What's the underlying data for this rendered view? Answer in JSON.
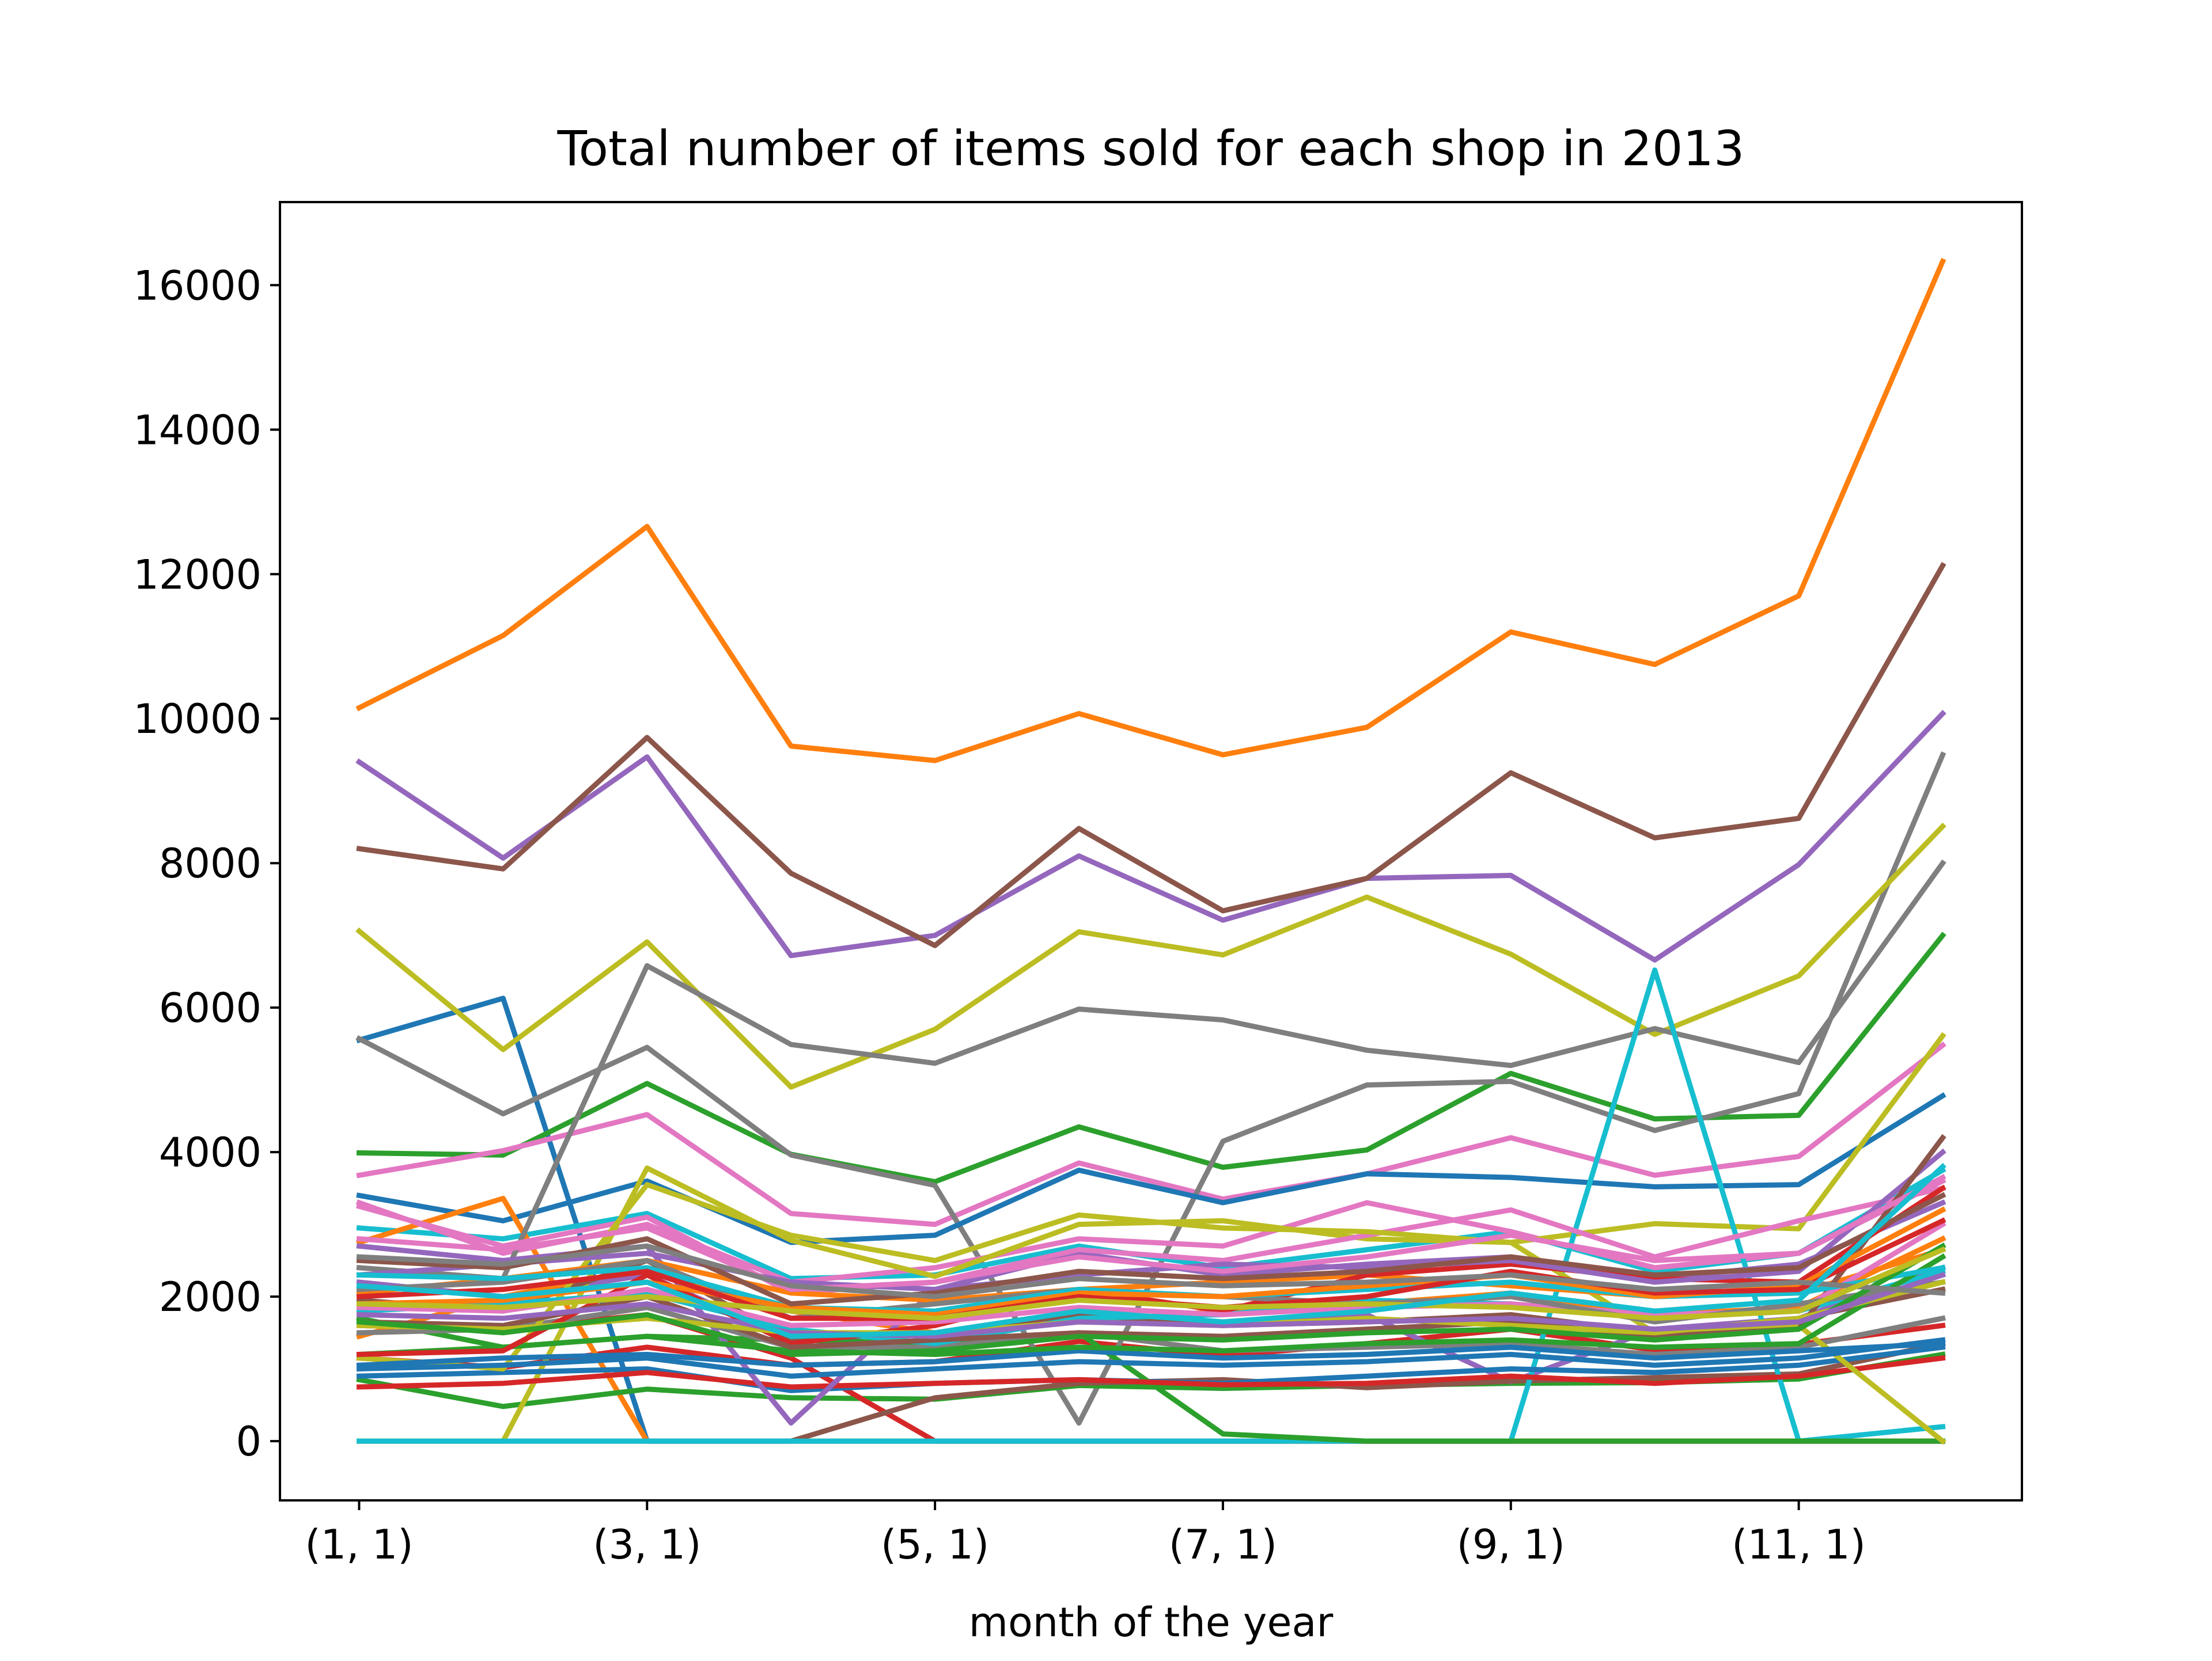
{
  "chart_data": {
    "type": "line",
    "title": "Total number of items sold for each shop in 2013",
    "xlabel": "month of the year",
    "ylabel": "",
    "x": [
      1,
      2,
      3,
      4,
      5,
      6,
      7,
      8,
      9,
      10,
      11,
      12
    ],
    "xticks": [
      {
        "x": 1,
        "label": "(1, 1)"
      },
      {
        "x": 3,
        "label": "(3, 1)"
      },
      {
        "x": 5,
        "label": "(5, 1)"
      },
      {
        "x": 7,
        "label": "(7, 1)"
      },
      {
        "x": 9,
        "label": "(9, 1)"
      },
      {
        "x": 11,
        "label": "(11, 1)"
      }
    ],
    "yticks": [
      0,
      2000,
      4000,
      6000,
      8000,
      10000,
      12000,
      14000,
      16000
    ],
    "xlim": [
      0.45,
      12.55
    ],
    "ylim": [
      -820,
      17150
    ],
    "grid": false,
    "legend": "none",
    "series": [
      {
        "color": "#1f77b4",
        "values": [
          5550,
          6130,
          0,
          0,
          0,
          0,
          0,
          0,
          0,
          0,
          0,
          0
        ]
      },
      {
        "color": "#ff7f0e",
        "values": [
          10150,
          11150,
          12660,
          9620,
          9420,
          10070,
          9500,
          9880,
          11200,
          10750,
          11700,
          16330
        ]
      },
      {
        "color": "#2ca02c",
        "values": [
          3990,
          3960,
          4950,
          3970,
          3590,
          4350,
          3790,
          4030,
          5090,
          4460,
          4510,
          7000
        ]
      },
      {
        "color": "#d62728",
        "values": [
          1150,
          1020,
          1300,
          1050,
          1100,
          1380,
          1180,
          1350,
          1550,
          1260,
          1340,
          1600
        ]
      },
      {
        "color": "#9467bd",
        "values": [
          9400,
          8070,
          9470,
          6720,
          7000,
          8100,
          7210,
          7790,
          7830,
          6660,
          7980,
          10070
        ]
      },
      {
        "color": "#8c564b",
        "values": [
          8200,
          7920,
          9740,
          7860,
          6860,
          8480,
          7340,
          7790,
          9250,
          8350,
          8620,
          12120
        ]
      },
      {
        "color": "#e377c2",
        "values": [
          3680,
          4020,
          4520,
          3150,
          3000,
          3850,
          3350,
          3700,
          4200,
          3680,
          3940,
          5480
        ]
      },
      {
        "color": "#7f7f7f",
        "values": [
          5570,
          4530,
          5450,
          3960,
          3540,
          250,
          4150,
          4930,
          4980,
          4300,
          4810,
          9500
        ]
      },
      {
        "color": "#bcbd22",
        "values": [
          7060,
          5420,
          6910,
          4900,
          5700,
          7050,
          6730,
          7530,
          6740,
          5630,
          6440,
          8510
        ]
      },
      {
        "color": "#17becf",
        "values": [
          2950,
          2800,
          3150,
          2250,
          2300,
          2700,
          2400,
          2650,
          2900,
          2350,
          2600,
          3750
        ]
      },
      {
        "color": "#1f77b4",
        "values": [
          3400,
          3050,
          3600,
          2750,
          2850,
          3750,
          3300,
          3700,
          3650,
          3520,
          3550,
          4780
        ]
      },
      {
        "color": "#ff7f0e",
        "values": [
          2750,
          3360,
          0,
          0,
          0,
          0,
          0,
          0,
          0,
          0,
          0,
          0
        ]
      },
      {
        "color": "#2ca02c",
        "values": [
          850,
          480,
          720,
          600,
          580,
          770,
          730,
          770,
          800,
          810,
          860,
          1200
        ]
      },
      {
        "color": "#d62728",
        "values": [
          1600,
          1550,
          1750,
          1150,
          0,
          0,
          0,
          0,
          0,
          0,
          0,
          0
        ]
      },
      {
        "color": "#9467bd",
        "values": [
          2200,
          2000,
          2300,
          1400,
          1500,
          1800,
          1600,
          1750,
          820,
          1550,
          1700,
          2400
        ]
      },
      {
        "color": "#8c564b",
        "values": [
          0,
          0,
          0,
          0,
          600,
          800,
          850,
          740,
          830,
          880,
          930,
          1350
        ]
      },
      {
        "color": "#e377c2",
        "values": [
          3300,
          2600,
          3000,
          2200,
          2400,
          2800,
          2700,
          3300,
          2900,
          2400,
          2600,
          3600
        ]
      },
      {
        "color": "#7f7f7f",
        "values": [
          2400,
          2250,
          6580,
          5490,
          5230,
          5980,
          5830,
          5410,
          5200,
          5710,
          5240,
          8000
        ]
      },
      {
        "color": "#bcbd22",
        "values": [
          0,
          0,
          3780,
          2780,
          2280,
          3000,
          3050,
          2800,
          2750,
          3010,
          2940,
          5610
        ]
      },
      {
        "color": "#17becf",
        "values": [
          0,
          0,
          0,
          0,
          0,
          0,
          0,
          0,
          0,
          6520,
          0,
          200
        ]
      },
      {
        "color": "#1f77b4",
        "values": [
          900,
          950,
          1000,
          700,
          800,
          850,
          800,
          900,
          1000,
          950,
          1050,
          1300
        ]
      },
      {
        "color": "#ff7f0e",
        "values": [
          1450,
          2000,
          2400,
          1800,
          1500,
          1650,
          1800,
          1900,
          2050,
          1750,
          1850,
          2800
        ]
      },
      {
        "color": "#2ca02c",
        "values": [
          1700,
          1300,
          1450,
          1400,
          1350,
          1500,
          100,
          0,
          0,
          0,
          0,
          0
        ]
      },
      {
        "color": "#d62728",
        "values": [
          750,
          800,
          950,
          750,
          800,
          850,
          780,
          800,
          900,
          800,
          900,
          1150
        ]
      },
      {
        "color": "#9467bd",
        "values": [
          2700,
          2500,
          2700,
          250,
          2100,
          2600,
          2300,
          2450,
          2550,
          2250,
          2450,
          3300
        ]
      },
      {
        "color": "#8c564b",
        "values": [
          1950,
          1800,
          2500,
          1400,
          1500,
          1750,
          1600,
          1650,
          1750,
          1500,
          1700,
          2100
        ]
      },
      {
        "color": "#e377c2",
        "values": [
          3250,
          2700,
          3100,
          2050,
          2200,
          2650,
          2500,
          2850,
          3200,
          2550,
          3050,
          3500
        ]
      },
      {
        "color": "#7f7f7f",
        "values": [
          1500,
          1550,
          1850,
          1300,
          1300,
          1500,
          1250,
          1300,
          1350,
          1200,
          1300,
          1700
        ]
      },
      {
        "color": "#bcbd22",
        "values": [
          1150,
          1000,
          3550,
          2850,
          2500,
          3130,
          2950,
          2900,
          2750,
          1500,
          1600,
          0
        ]
      },
      {
        "color": "#17becf",
        "values": [
          1800,
          1900,
          2050,
          1550,
          1350,
          1700,
          1750,
          1950,
          1900,
          1750,
          1800,
          2350
        ]
      },
      {
        "color": "#1f77b4",
        "values": [
          1050,
          1150,
          1200,
          1050,
          1100,
          1250,
          1150,
          1200,
          1300,
          1150,
          1250,
          1350
        ]
      },
      {
        "color": "#ff7f0e",
        "values": [
          2050,
          2250,
          2500,
          2050,
          1950,
          2100,
          2200,
          2300,
          2150,
          2000,
          2050,
          2650
        ]
      },
      {
        "color": "#2ca02c",
        "values": [
          1200,
          1300,
          1450,
          1250,
          1200,
          1300,
          1250,
          1350,
          1400,
          1300,
          1350,
          2550
        ]
      },
      {
        "color": "#d62728",
        "values": [
          1200,
          1250,
          2300,
          1350,
          1600,
          2100,
          1800,
          2300,
          2450,
          2250,
          2200,
          3500
        ]
      },
      {
        "color": "#9467bd",
        "values": [
          2300,
          2450,
          2600,
          2200,
          2100,
          2300,
          2450,
          2400,
          2500,
          2200,
          2350,
          4000
        ]
      },
      {
        "color": "#8c564b",
        "values": [
          1650,
          1600,
          2000,
          1300,
          1400,
          1500,
          1450,
          1550,
          1650,
          1450,
          1550,
          4200
        ]
      },
      {
        "color": "#e377c2",
        "values": [
          1850,
          1800,
          2100,
          1600,
          1650,
          1850,
          1750,
          1850,
          1900,
          1750,
          1800,
          3000
        ]
      },
      {
        "color": "#7f7f7f",
        "values": [
          2100,
          2200,
          2500,
          1700,
          1900,
          2100,
          2000,
          1900,
          2000,
          1650,
          1900,
          2200
        ]
      },
      {
        "color": "#bcbd22",
        "values": [
          1600,
          1550,
          1700,
          1500,
          1500,
          1650,
          1600,
          1700,
          1600,
          1500,
          1700,
          2200
        ]
      },
      {
        "color": "#17becf",
        "values": [
          2300,
          2250,
          2400,
          1850,
          1800,
          2100,
          2000,
          2100,
          2200,
          2000,
          2050,
          2400
        ]
      },
      {
        "color": "#1f77b4",
        "values": [
          1000,
          1050,
          1150,
          900,
          1000,
          1100,
          1050,
          1100,
          1200,
          1050,
          1150,
          1400
        ]
      },
      {
        "color": "#ff7f0e",
        "values": [
          1900,
          1950,
          2200,
          1850,
          1750,
          2050,
          2000,
          2150,
          2300,
          2000,
          2150,
          3200
        ]
      },
      {
        "color": "#2ca02c",
        "values": [
          1650,
          1500,
          1750,
          1200,
          1250,
          1450,
          1400,
          1500,
          1550,
          1400,
          1550,
          2700
        ]
      },
      {
        "color": "#d62728",
        "values": [
          2000,
          2100,
          2350,
          1700,
          1700,
          2000,
          1850,
          2000,
          2350,
          2050,
          2100,
          3050
        ]
      },
      {
        "color": "#9467bd",
        "values": [
          1750,
          1700,
          1900,
          1500,
          1450,
          1650,
          1600,
          1650,
          1700,
          1550,
          1650,
          2300
        ]
      },
      {
        "color": "#8c564b",
        "values": [
          2500,
          2400,
          2800,
          1900,
          2050,
          2350,
          2250,
          2350,
          2550,
          2300,
          2400,
          3400
        ]
      },
      {
        "color": "#e377c2",
        "values": [
          2800,
          2650,
          2950,
          2100,
          2200,
          2550,
          2350,
          2550,
          2850,
          2500,
          2600,
          3650
        ]
      },
      {
        "color": "#7f7f7f",
        "values": [
          2550,
          2450,
          2700,
          2150,
          2000,
          2250,
          2150,
          2200,
          2300,
          2100,
          2200,
          2050
        ]
      },
      {
        "color": "#bcbd22",
        "values": [
          1900,
          1850,
          2000,
          1800,
          1700,
          1950,
          1850,
          1900,
          1850,
          1700,
          1800,
          2650
        ]
      },
      {
        "color": "#17becf",
        "values": [
          2150,
          2000,
          2200,
          1450,
          1500,
          1800,
          1650,
          1800,
          2050,
          1800,
          1950,
          3800
        ]
      }
    ]
  }
}
